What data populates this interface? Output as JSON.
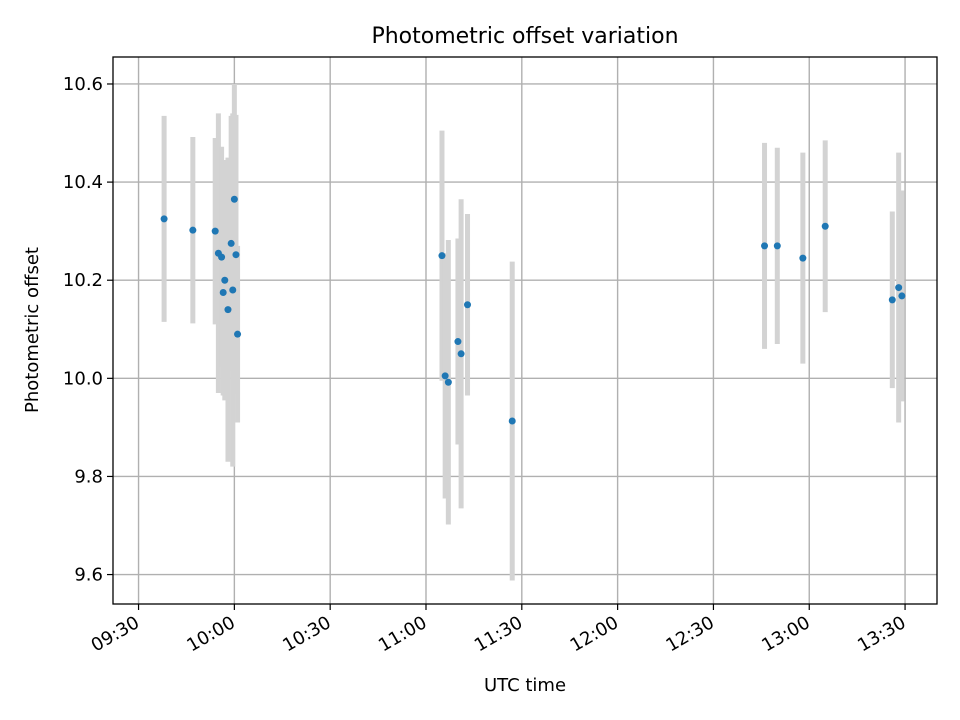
{
  "chart_data": {
    "type": "scatter",
    "title": "Photometric offset variation",
    "xlabel": "UTC time",
    "ylabel": "Photometric offset",
    "grid": true,
    "xlim": [
      "09:22",
      "13:40"
    ],
    "ylim": [
      9.54,
      10.655
    ],
    "x_ticks": [
      "09:30",
      "10:00",
      "10:30",
      "11:00",
      "11:30",
      "12:00",
      "12:30",
      "13:00",
      "13:30"
    ],
    "y_ticks": [
      "9.6",
      "9.8",
      "10.0",
      "10.2",
      "10.4",
      "10.6"
    ],
    "colors": {
      "marker": "#1f77b4",
      "errorbar": "#d3d3d3",
      "grid": "#b0b0b0"
    },
    "series": [
      {
        "points": [
          {
            "x": "09:38",
            "y": 10.325,
            "yerr": 0.21
          },
          {
            "x": "09:47",
            "y": 10.302,
            "yerr": 0.19
          },
          {
            "x": "09:54",
            "y": 10.3,
            "yerr": 0.19
          },
          {
            "x": "09:55",
            "y": 10.255,
            "yerr": 0.285
          },
          {
            "x": "09:56",
            "y": 10.247,
            "yerr": 0.225
          },
          {
            "x": "09:56.5",
            "y": 10.175,
            "yerr": 0.21
          },
          {
            "x": "09:57",
            "y": 10.2,
            "yerr": 0.245
          },
          {
            "x": "09:58",
            "y": 10.14,
            "yerr": 0.31
          },
          {
            "x": "09:59",
            "y": 10.275,
            "yerr": 0.26
          },
          {
            "x": "09:59.5",
            "y": 10.18,
            "yerr": 0.36
          },
          {
            "x": "10:00",
            "y": 10.365,
            "yerr": 0.235
          },
          {
            "x": "10:00.5",
            "y": 10.252,
            "yerr": 0.285
          },
          {
            "x": "10:01",
            "y": 10.09,
            "yerr": 0.18
          },
          {
            "x": "11:05",
            "y": 10.25,
            "yerr": 0.255
          },
          {
            "x": "11:06",
            "y": 10.005,
            "yerr": 0.25
          },
          {
            "x": "11:07",
            "y": 9.992,
            "yerr": 0.29
          },
          {
            "x": "11:10",
            "y": 10.075,
            "yerr": 0.21
          },
          {
            "x": "11:11",
            "y": 10.05,
            "yerr": 0.315
          },
          {
            "x": "11:13",
            "y": 10.15,
            "yerr": 0.185
          },
          {
            "x": "11:27",
            "y": 9.913,
            "yerr": 0.325
          },
          {
            "x": "12:46",
            "y": 10.27,
            "yerr": 0.21
          },
          {
            "x": "12:50",
            "y": 10.27,
            "yerr": 0.2
          },
          {
            "x": "12:58",
            "y": 10.245,
            "yerr": 0.215
          },
          {
            "x": "13:05",
            "y": 10.31,
            "yerr": 0.175
          },
          {
            "x": "13:26",
            "y": 10.16,
            "yerr": 0.18
          },
          {
            "x": "13:28",
            "y": 10.185,
            "yerr": 0.275
          },
          {
            "x": "13:29",
            "y": 10.168,
            "yerr": 0.215
          }
        ]
      }
    ]
  }
}
